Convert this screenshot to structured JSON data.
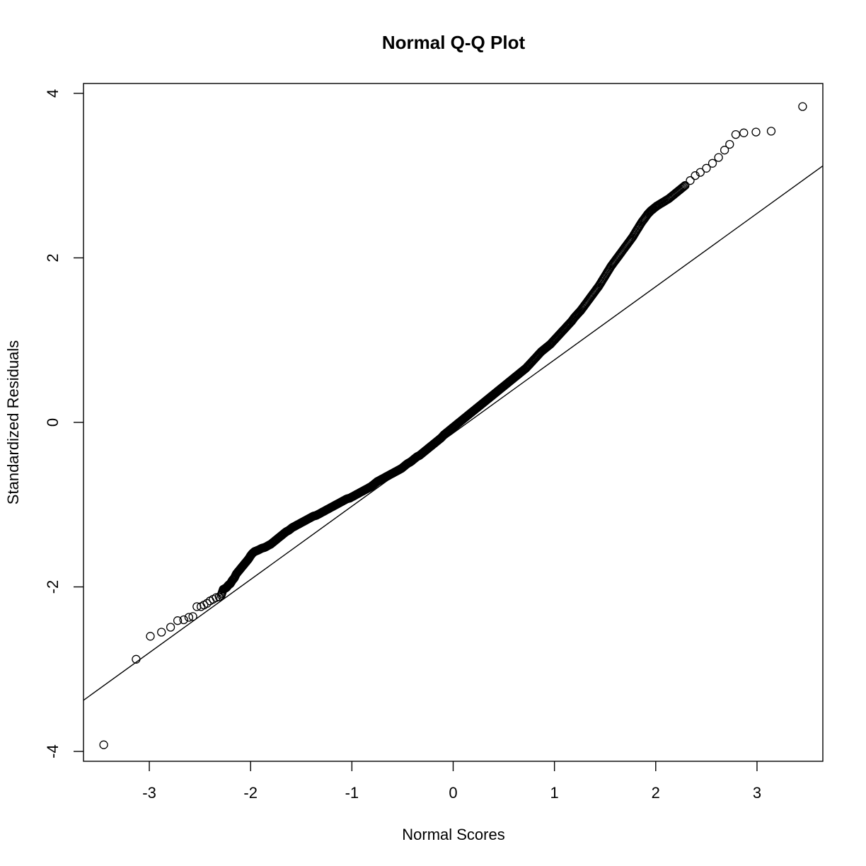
{
  "chart_data": {
    "type": "scatter",
    "title": "Normal Q-Q Plot",
    "xlabel": "Normal Scores",
    "ylabel": "Standardized Residuals",
    "xlim": [
      -3.65,
      3.65
    ],
    "ylim": [
      -4.12,
      4.12
    ],
    "xticks": [
      -3,
      -2,
      -1,
      0,
      1,
      2,
      3
    ],
    "yticks": [
      -4,
      -2,
      0,
      2,
      4
    ],
    "xtick_labels": [
      "-3",
      "-2",
      "-1",
      "0",
      "1",
      "2",
      "3"
    ],
    "ytick_labels": [
      "-4",
      "-2",
      "0",
      "2",
      "4"
    ],
    "grid": false,
    "legend": "none",
    "reference_line": {
      "slope": 0.89,
      "intercept": -0.13
    },
    "series": [
      {
        "points": [
          [
            -3.45,
            -3.92
          ],
          [
            -3.13,
            -2.88
          ],
          [
            -2.99,
            -2.6
          ],
          [
            -2.88,
            -2.55
          ],
          [
            -2.79,
            -2.49
          ],
          [
            -2.72,
            -2.41
          ],
          [
            -2.66,
            -2.4
          ],
          [
            -2.61,
            -2.37
          ],
          [
            -2.57,
            -2.36
          ],
          [
            -2.53,
            -2.24
          ],
          [
            -2.49,
            -2.24
          ],
          [
            -2.46,
            -2.22
          ],
          [
            -2.43,
            -2.2
          ],
          [
            -2.4,
            -2.17
          ],
          [
            -2.37,
            -2.15
          ],
          [
            -2.34,
            -2.13
          ],
          [
            -2.31,
            -2.12
          ],
          [
            -2.29,
            -2.1
          ],
          [
            -2.27,
            -2.03
          ],
          [
            -2.24,
            -2.01
          ],
          [
            -2.22,
            -1.98
          ],
          [
            -2.2,
            -1.96
          ],
          [
            -2.18,
            -1.92
          ],
          [
            -2.16,
            -1.89
          ],
          [
            -2.14,
            -1.84
          ],
          [
            -2.12,
            -1.81
          ],
          [
            -2.1,
            -1.78
          ],
          [
            -2.08,
            -1.75
          ],
          [
            -2.06,
            -1.72
          ],
          [
            -2.04,
            -1.69
          ],
          [
            -2.02,
            -1.66
          ],
          [
            -2.0,
            -1.62
          ],
          [
            -1.98,
            -1.59
          ],
          [
            -1.96,
            -1.57
          ],
          [
            -1.94,
            -1.56
          ],
          [
            -1.92,
            -1.55
          ],
          [
            -1.89,
            -1.53
          ],
          [
            -1.86,
            -1.52
          ],
          [
            -1.83,
            -1.5
          ],
          [
            -1.8,
            -1.48
          ],
          [
            -1.77,
            -1.45
          ],
          [
            -1.74,
            -1.42
          ],
          [
            -1.71,
            -1.39
          ],
          [
            -1.68,
            -1.36
          ],
          [
            -1.65,
            -1.33
          ],
          [
            -1.62,
            -1.31
          ],
          [
            -1.59,
            -1.28
          ],
          [
            -1.56,
            -1.26
          ],
          [
            -1.53,
            -1.24
          ],
          [
            -1.5,
            -1.22
          ],
          [
            -1.47,
            -1.2
          ],
          [
            -1.44,
            -1.18
          ],
          [
            -1.41,
            -1.16
          ],
          [
            -1.38,
            -1.14
          ],
          [
            -1.35,
            -1.13
          ],
          [
            -1.32,
            -1.11
          ],
          [
            -1.29,
            -1.09
          ],
          [
            -1.26,
            -1.07
          ],
          [
            -1.23,
            -1.05
          ],
          [
            -1.2,
            -1.03
          ],
          [
            -1.17,
            -1.01
          ],
          [
            -1.14,
            -0.99
          ],
          [
            -1.11,
            -0.97
          ],
          [
            -1.08,
            -0.95
          ],
          [
            -1.05,
            -0.93
          ],
          [
            -1.02,
            -0.92
          ],
          [
            -0.99,
            -0.9
          ],
          [
            -0.96,
            -0.88
          ],
          [
            -0.93,
            -0.86
          ],
          [
            -0.9,
            -0.84
          ],
          [
            -0.87,
            -0.82
          ],
          [
            -0.84,
            -0.8
          ],
          [
            -0.81,
            -0.78
          ],
          [
            -0.78,
            -0.75
          ],
          [
            -0.75,
            -0.72
          ],
          [
            -0.72,
            -0.7
          ],
          [
            -0.69,
            -0.68
          ],
          [
            -0.66,
            -0.66
          ],
          [
            -0.63,
            -0.64
          ],
          [
            -0.6,
            -0.62
          ],
          [
            -0.57,
            -0.6
          ],
          [
            -0.54,
            -0.58
          ],
          [
            -0.51,
            -0.56
          ],
          [
            -0.48,
            -0.53
          ],
          [
            -0.45,
            -0.5
          ],
          [
            -0.42,
            -0.48
          ],
          [
            -0.39,
            -0.45
          ],
          [
            -0.36,
            -0.42
          ],
          [
            -0.33,
            -0.4
          ],
          [
            -0.3,
            -0.37
          ],
          [
            -0.27,
            -0.34
          ],
          [
            -0.24,
            -0.31
          ],
          [
            -0.21,
            -0.28
          ],
          [
            -0.18,
            -0.25
          ],
          [
            -0.15,
            -0.22
          ],
          [
            -0.12,
            -0.19
          ],
          [
            -0.09,
            -0.15
          ],
          [
            -0.06,
            -0.12
          ],
          [
            -0.03,
            -0.09
          ],
          [
            0.0,
            -0.06
          ],
          [
            0.03,
            -0.03
          ],
          [
            0.06,
            0.0
          ],
          [
            0.09,
            0.03
          ],
          [
            0.12,
            0.06
          ],
          [
            0.15,
            0.09
          ],
          [
            0.18,
            0.12
          ],
          [
            0.21,
            0.15
          ],
          [
            0.24,
            0.18
          ],
          [
            0.27,
            0.21
          ],
          [
            0.3,
            0.24
          ],
          [
            0.33,
            0.27
          ],
          [
            0.36,
            0.3
          ],
          [
            0.39,
            0.33
          ],
          [
            0.42,
            0.36
          ],
          [
            0.45,
            0.39
          ],
          [
            0.48,
            0.42
          ],
          [
            0.51,
            0.45
          ],
          [
            0.54,
            0.48
          ],
          [
            0.57,
            0.51
          ],
          [
            0.6,
            0.54
          ],
          [
            0.63,
            0.57
          ],
          [
            0.66,
            0.6
          ],
          [
            0.69,
            0.63
          ],
          [
            0.72,
            0.66
          ],
          [
            0.75,
            0.7
          ],
          [
            0.78,
            0.74
          ],
          [
            0.81,
            0.78
          ],
          [
            0.84,
            0.82
          ],
          [
            0.87,
            0.86
          ],
          [
            0.9,
            0.89
          ],
          [
            0.93,
            0.92
          ],
          [
            0.96,
            0.95
          ],
          [
            0.99,
            0.99
          ],
          [
            1.02,
            1.03
          ],
          [
            1.05,
            1.07
          ],
          [
            1.08,
            1.11
          ],
          [
            1.11,
            1.15
          ],
          [
            1.14,
            1.19
          ],
          [
            1.17,
            1.23
          ],
          [
            1.2,
            1.28
          ],
          [
            1.23,
            1.32
          ],
          [
            1.26,
            1.36
          ],
          [
            1.29,
            1.41
          ],
          [
            1.32,
            1.46
          ],
          [
            1.35,
            1.51
          ],
          [
            1.38,
            1.56
          ],
          [
            1.41,
            1.61
          ],
          [
            1.44,
            1.66
          ],
          [
            1.47,
            1.72
          ],
          [
            1.5,
            1.78
          ],
          [
            1.53,
            1.84
          ],
          [
            1.56,
            1.9
          ],
          [
            1.59,
            1.95
          ],
          [
            1.62,
            2.0
          ],
          [
            1.65,
            2.05
          ],
          [
            1.68,
            2.1
          ],
          [
            1.71,
            2.15
          ],
          [
            1.74,
            2.2
          ],
          [
            1.77,
            2.25
          ],
          [
            1.8,
            2.31
          ],
          [
            1.83,
            2.37
          ],
          [
            1.86,
            2.43
          ],
          [
            1.89,
            2.48
          ],
          [
            1.92,
            2.53
          ],
          [
            1.95,
            2.57
          ],
          [
            1.98,
            2.6
          ],
          [
            2.01,
            2.63
          ],
          [
            2.05,
            2.66
          ],
          [
            2.09,
            2.69
          ],
          [
            2.13,
            2.72
          ],
          [
            2.17,
            2.76
          ],
          [
            2.21,
            2.8
          ],
          [
            2.25,
            2.84
          ],
          [
            2.29,
            2.88
          ],
          [
            2.34,
            2.94
          ],
          [
            2.39,
            3.0
          ],
          [
            2.44,
            3.04
          ],
          [
            2.5,
            3.09
          ],
          [
            2.56,
            3.15
          ],
          [
            2.62,
            3.22
          ],
          [
            2.68,
            3.31
          ],
          [
            2.73,
            3.38
          ],
          [
            2.79,
            3.5
          ],
          [
            2.87,
            3.52
          ],
          [
            2.99,
            3.53
          ],
          [
            3.14,
            3.54
          ],
          [
            3.45,
            3.84
          ]
        ]
      }
    ]
  }
}
